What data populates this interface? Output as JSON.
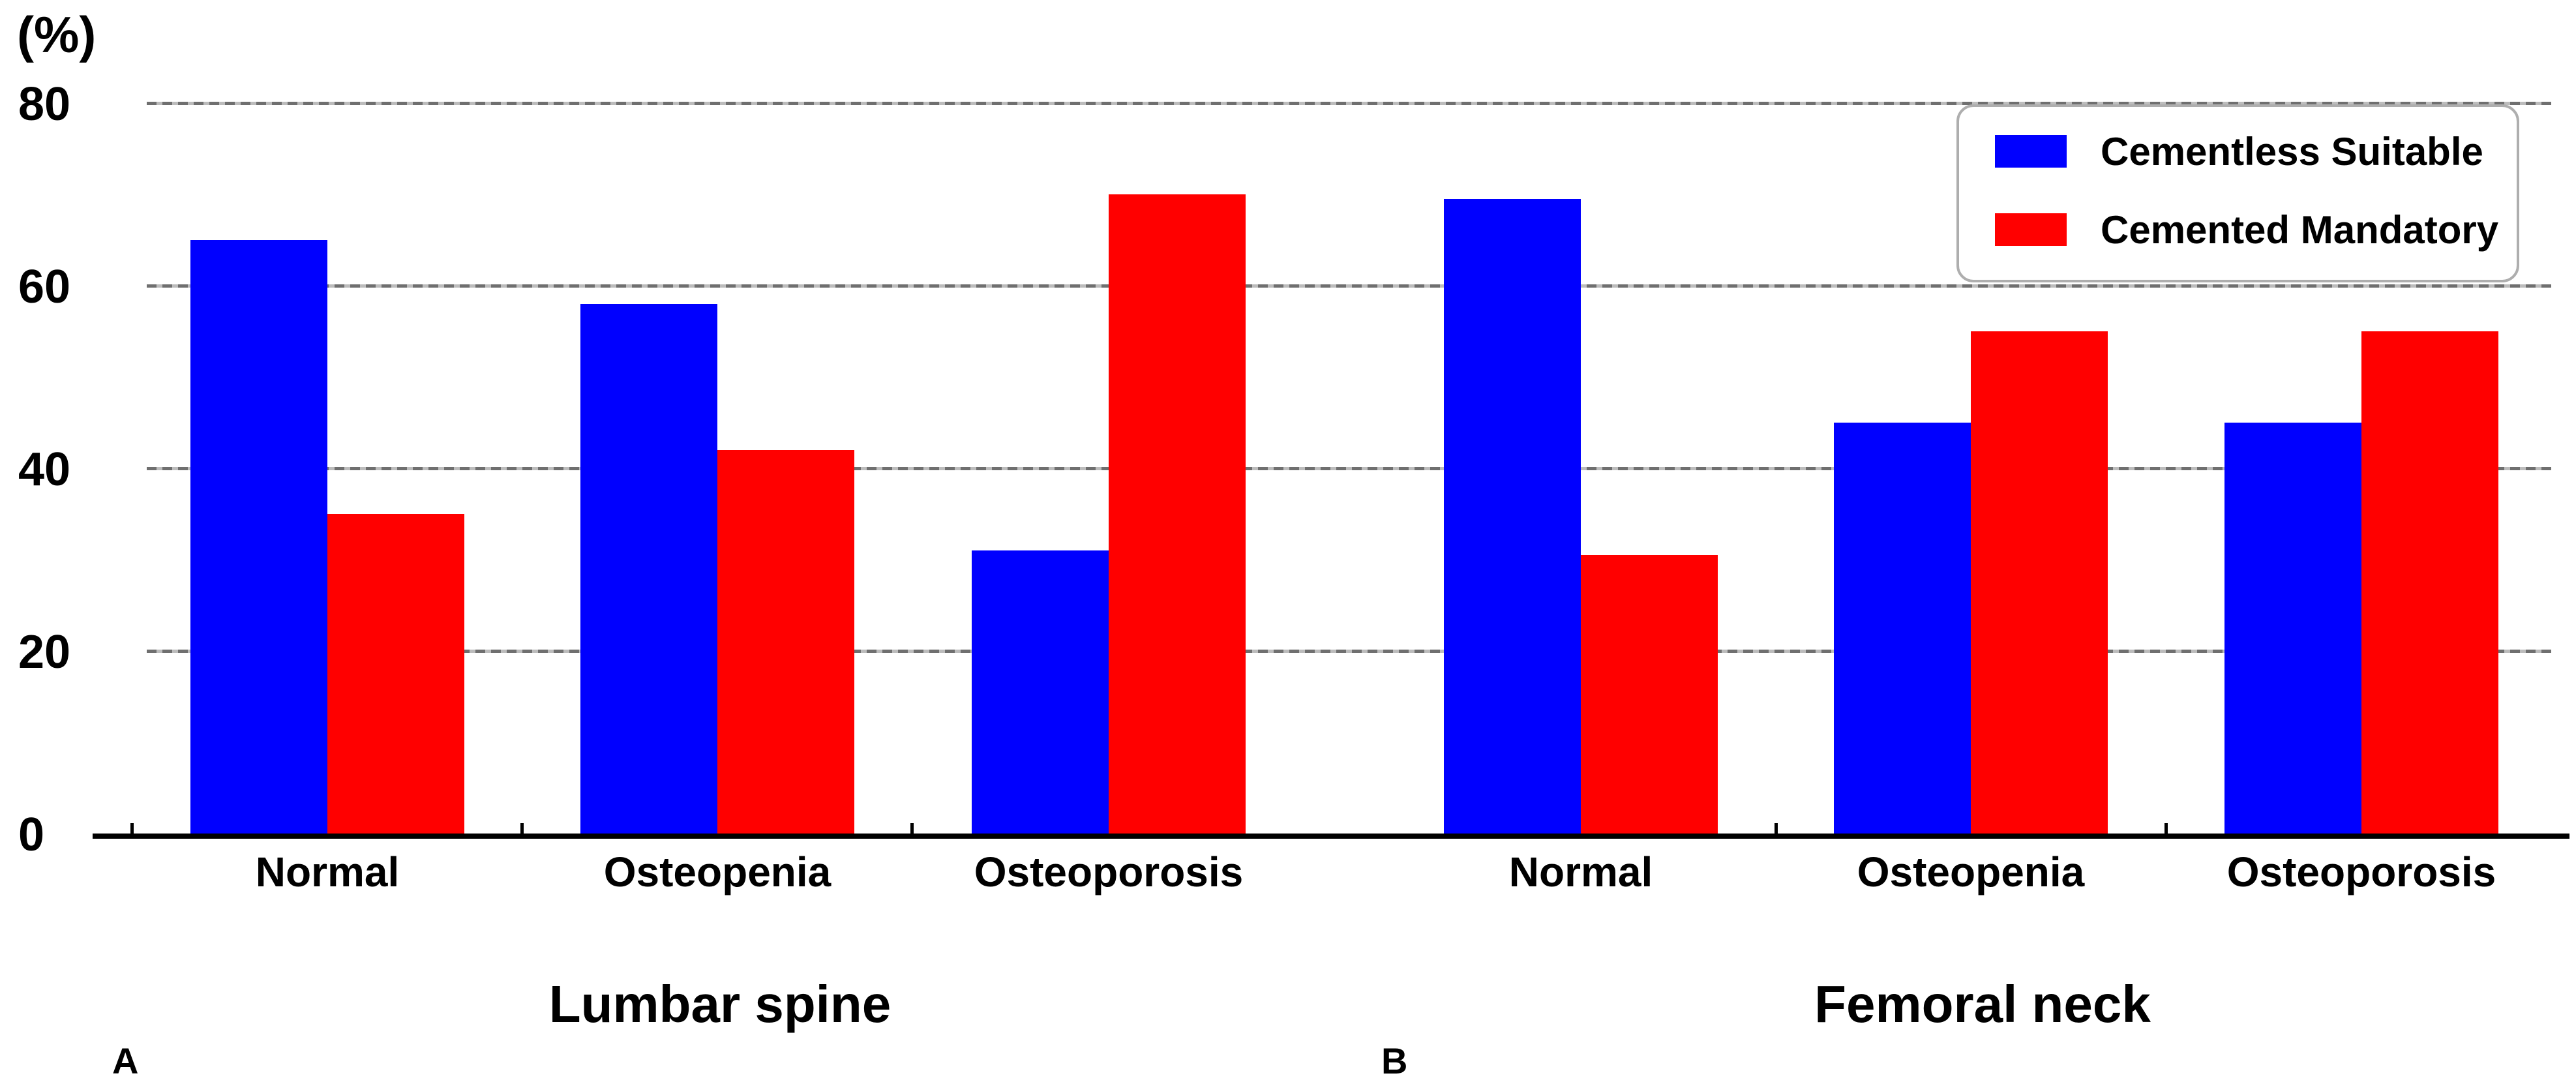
{
  "chart_data": {
    "type": "bar",
    "y_axis": {
      "unit_label": "(%)",
      "ticks": [
        0,
        20,
        40,
        60,
        80
      ],
      "ylim": [
        0,
        80
      ],
      "grid": "horizontal-dashed-gray"
    },
    "legend": {
      "position": "top-right",
      "entries": [
        {
          "label": "Cementless Suitable",
          "color": "#0000ff"
        },
        {
          "label": "Cemented Mandatory",
          "color": "#ff0000"
        }
      ]
    },
    "panels": [
      {
        "letter": "A",
        "title": "Lumbar spine",
        "categories": [
          "Normal",
          "Osteopenia",
          "Osteoporosis"
        ],
        "series": [
          {
            "name": "Cementless Suitable",
            "color": "#0000ff",
            "values": [
              65,
              58,
              31
            ]
          },
          {
            "name": "Cemented Mandatory",
            "color": "#ff0000",
            "values": [
              35,
              42,
              70
            ]
          }
        ]
      },
      {
        "letter": "B",
        "title": "Femoral neck",
        "categories": [
          "Normal",
          "Osteopenia",
          "Osteoporosis"
        ],
        "series": [
          {
            "name": "Cementless Suitable",
            "color": "#0000ff",
            "values": [
              69.5,
              45,
              45
            ]
          },
          {
            "name": "Cemented Mandatory",
            "color": "#ff0000",
            "values": [
              30.5,
              55,
              55
            ]
          }
        ]
      }
    ]
  }
}
